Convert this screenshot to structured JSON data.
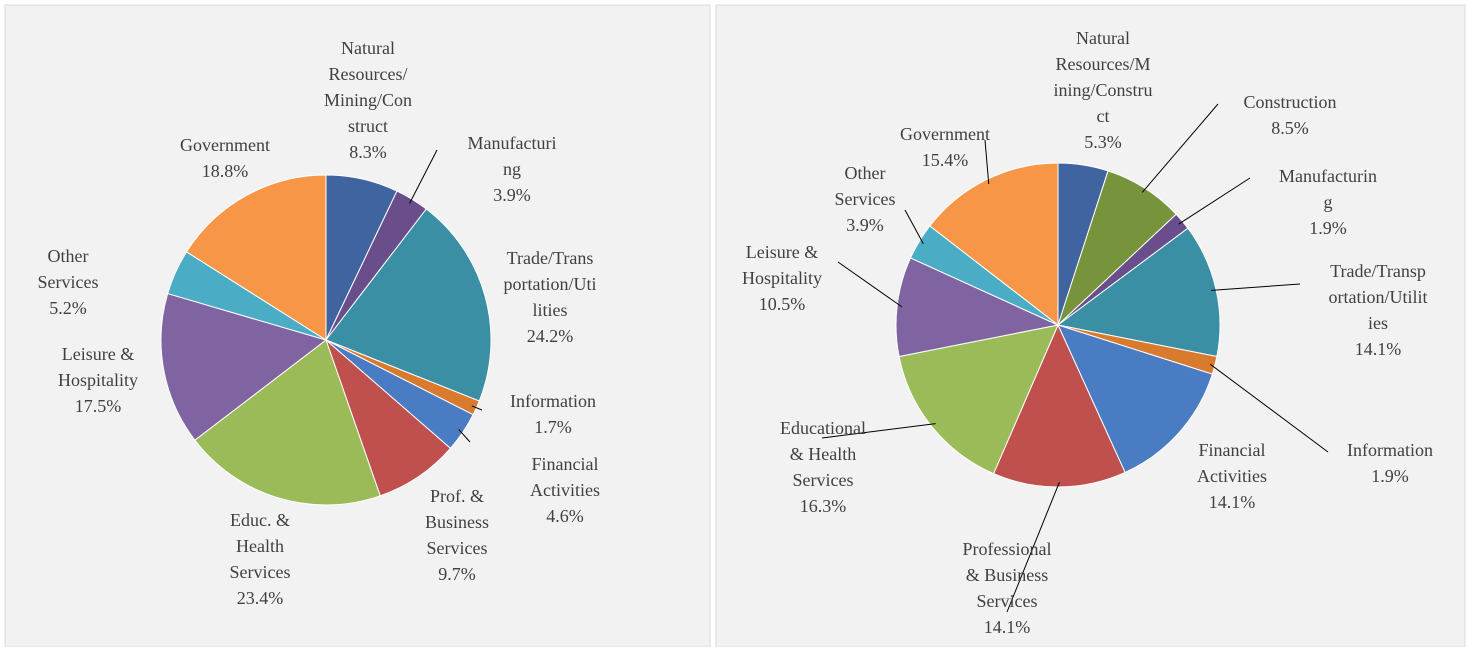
{
  "chart_data": [
    {
      "type": "pie",
      "categories": [
        [
          "Natural",
          "Resources/",
          "Mining/Con",
          "struct"
        ],
        [
          "Manufacturi",
          "ng"
        ],
        [
          "Trade/Trans",
          "portation/Uti",
          "lities"
        ],
        [
          "Information"
        ],
        [
          "Financial",
          "Activities"
        ],
        [
          "Prof. &",
          "Business",
          "Services"
        ],
        [
          "Educ. &",
          "Health",
          "Services"
        ],
        [
          "Leisure &",
          "Hospitality"
        ],
        [
          "Other",
          "Services"
        ],
        [
          "Government"
        ]
      ],
      "values": [
        8.3,
        3.9,
        24.2,
        1.7,
        4.6,
        9.7,
        23.4,
        17.5,
        5.2,
        18.8
      ],
      "value_labels": [
        "8.3%",
        "3.9%",
        "24.2%",
        "1.7%",
        "4.6%",
        "9.7%",
        "23.4%",
        "17.5%",
        "5.2%",
        "18.8%"
      ],
      "colors": [
        "#3f64a0",
        "#6a4e8c",
        "#3a8fa5",
        "#d97b2f",
        "#4a7cc4",
        "#c0504d",
        "#9bbb59",
        "#8064a2",
        "#4bacc6",
        "#f79646"
      ]
    },
    {
      "type": "pie",
      "categories": [
        [
          "Natural",
          "Resources/M",
          "ining/Constru",
          "ct"
        ],
        [
          "Construction"
        ],
        [
          "Manufacturin",
          "g"
        ],
        [
          "Trade/Transp",
          "ortation/Utilit",
          "ies"
        ],
        [
          "Information"
        ],
        [
          "Financial",
          "Activities"
        ],
        [
          "Professional",
          "& Business",
          "Services"
        ],
        [
          "Educational",
          "& Health",
          "Services"
        ],
        [
          "Leisure &",
          "Hospitality"
        ],
        [
          "Other",
          "Services"
        ],
        [
          "Government"
        ]
      ],
      "values": [
        5.3,
        8.5,
        1.9,
        14.1,
        1.9,
        14.1,
        14.1,
        16.3,
        10.5,
        3.9,
        15.4
      ],
      "value_labels": [
        "5.3%",
        "8.5%",
        "1.9%",
        "14.1%",
        "1.9%",
        "14.1%",
        "14.1%",
        "16.3%",
        "10.5%",
        "3.9%",
        "15.4%"
      ],
      "colors": [
        "#3f64a0",
        "#77933c",
        "#6a4e8c",
        "#3a8fa5",
        "#d97b2f",
        "#4a7cc4",
        "#c0504d",
        "#9bbb59",
        "#8064a2",
        "#4bacc6",
        "#f79646"
      ]
    }
  ]
}
